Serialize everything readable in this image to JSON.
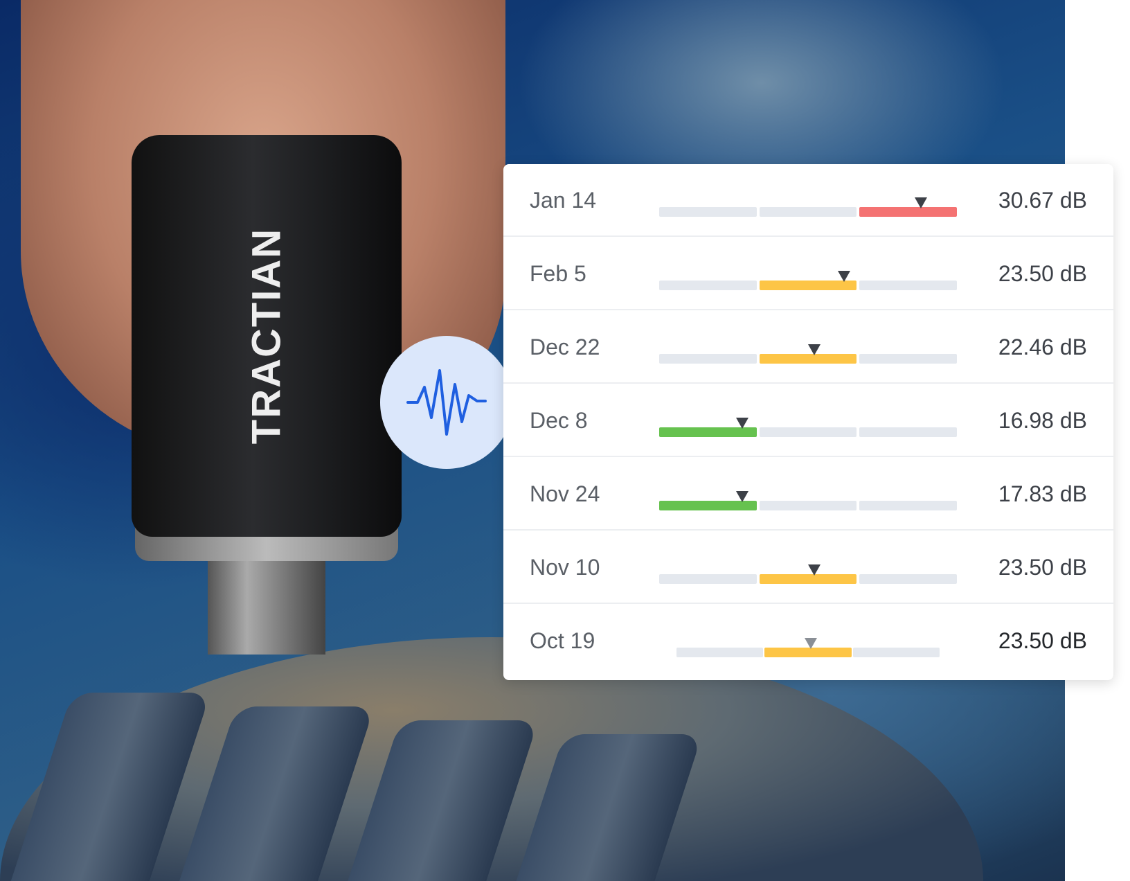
{
  "brand": {
    "logo_text": "TRACTIAN"
  },
  "badge": {
    "icon": "waveform-icon",
    "color": "#1f5fe0",
    "background": "#dbe7fb"
  },
  "colors": {
    "track": "#e4e8ee",
    "low": "#66c24f",
    "medium": "#fdc546",
    "high": "#f47272",
    "marker": "#3d4148"
  },
  "readings": [
    {
      "date": "Jan 14",
      "value": "30.67 dB",
      "level": "high",
      "active_segment": 3,
      "marker_fraction": 0.88
    },
    {
      "date": "Feb 5",
      "value": "23.50 dB",
      "level": "medium",
      "active_segment": 2,
      "marker_fraction": 0.62
    },
    {
      "date": "Dec 22",
      "value": "22.46 dB",
      "level": "medium",
      "active_segment": 2,
      "marker_fraction": 0.52
    },
    {
      "date": "Dec 8",
      "value": "16.98 dB",
      "level": "low",
      "active_segment": 1,
      "marker_fraction": 0.28
    },
    {
      "date": "Nov 24",
      "value": "17.83 dB",
      "level": "low",
      "active_segment": 1,
      "marker_fraction": 0.28
    },
    {
      "date": "Nov 10",
      "value": "23.50 dB",
      "level": "medium",
      "active_segment": 2,
      "marker_fraction": 0.52
    },
    {
      "date": "Oct 19",
      "value": "23.50 dB",
      "level": "medium",
      "active_segment": 2,
      "marker_fraction": 0.51
    }
  ]
}
